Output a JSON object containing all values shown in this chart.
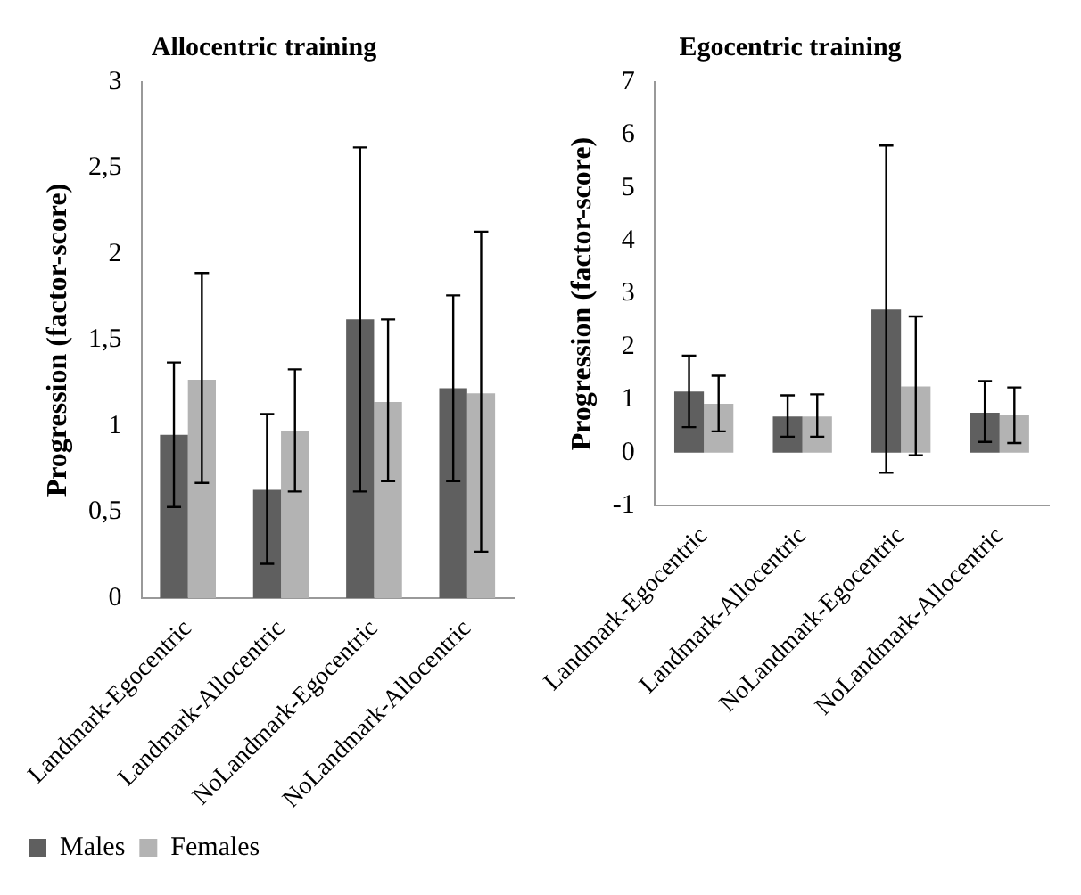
{
  "chart_data": [
    {
      "type": "bar",
      "title": "Allocentric training",
      "ylabel": "Progression (factor-score)",
      "categories": [
        "Landmark-Egocentric",
        "Landmark-Allocentric",
        "NoLandmark-Egocentric",
        "NoLandmark-Allocentric"
      ],
      "ylim": [
        0,
        3
      ],
      "yticks": [
        0,
        {
          "value": 0.5,
          "label": "0,5"
        },
        1,
        {
          "value": 1.5,
          "label": "1,5"
        },
        2,
        {
          "value": 2.5,
          "label": "2,5"
        },
        3
      ],
      "legend": "bottom left",
      "series": [
        {
          "name": "Males",
          "color": "#5f5f5f",
          "values": [
            0.95,
            0.63,
            1.62,
            1.22
          ],
          "errors": [
            [
              0.53,
              1.37
            ],
            [
              0.2,
              1.07
            ],
            [
              0.62,
              2.62
            ],
            [
              0.68,
              1.76
            ]
          ]
        },
        {
          "name": "Females",
          "color": "#b3b3b3",
          "values": [
            1.27,
            0.97,
            1.14,
            1.19
          ],
          "errors": [
            [
              0.67,
              1.89
            ],
            [
              0.62,
              1.33
            ],
            [
              0.68,
              1.62
            ],
            [
              0.27,
              2.13
            ]
          ]
        }
      ]
    },
    {
      "type": "bar",
      "title": "Egocentric training",
      "ylabel": "Progression (factor-score)",
      "categories": [
        "Landmark-Egocentric",
        "Landmark-Allocentric",
        "NoLandmark-Egocentric",
        "NoLandmark-Allocentric"
      ],
      "ylim": [
        -1,
        7
      ],
      "yticks": [
        -1,
        0,
        1,
        2,
        3,
        4,
        5,
        6,
        7
      ],
      "series": [
        {
          "color": "#5f5f5f",
          "values": [
            1.15,
            0.68,
            2.7,
            0.75
          ],
          "errors": [
            [
              0.48,
              1.83
            ],
            [
              0.3,
              1.08
            ],
            [
              -0.38,
              5.8
            ],
            [
              0.2,
              1.35
            ]
          ]
        },
        {
          "color": "#b3b3b3",
          "values": [
            0.92,
            0.68,
            1.25,
            0.7
          ],
          "errors": [
            [
              0.4,
              1.45
            ],
            [
              0.3,
              1.1
            ],
            [
              -0.05,
              2.57
            ],
            [
              0.18,
              1.23
            ]
          ]
        }
      ]
    }
  ]
}
